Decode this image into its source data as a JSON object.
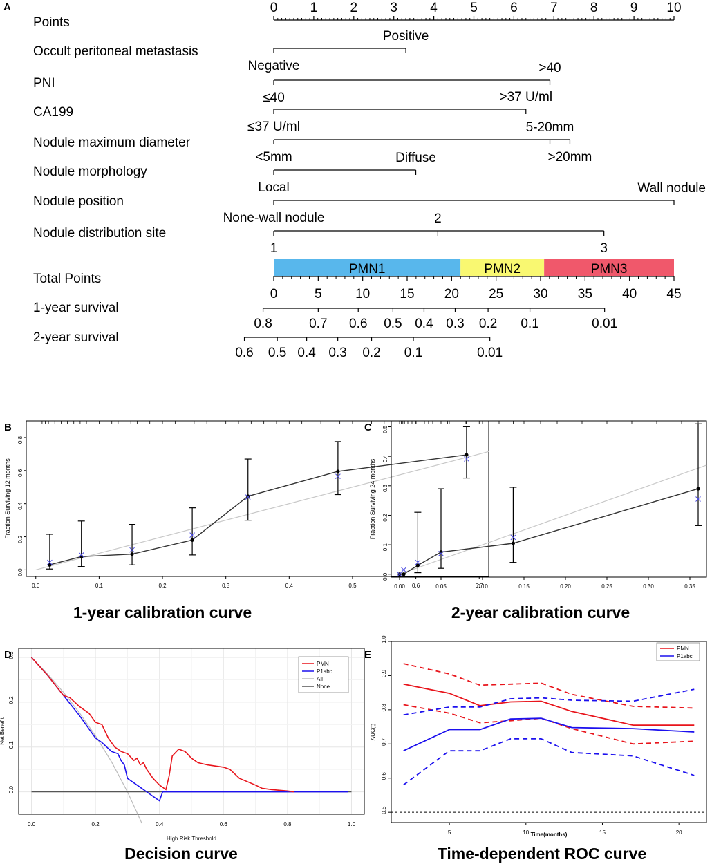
{
  "chart_data": [
    {
      "panel": "A",
      "type": "table",
      "kind": "nomogram",
      "points_axis": {
        "label": "Points",
        "ticks": [
          "0",
          "1",
          "2",
          "3",
          "4",
          "5",
          "6",
          "7",
          "8",
          "9",
          "10"
        ]
      },
      "variables": [
        {
          "key": "occult",
          "name": "Occult peritoneal metastasis",
          "levels": [
            {
              "label": "Negative",
              "points": 0
            },
            {
              "label": "Positive",
              "points": 3.3
            }
          ]
        },
        {
          "key": "pni",
          "name": "PNI",
          "levels": [
            {
              "label": "≤40",
              "points": 0
            },
            {
              "label": ">40",
              "points": 6.9
            }
          ]
        },
        {
          "key": "ca199",
          "name": "CA199",
          "levels": [
            {
              "label": "≤37 U/ml",
              "points": 0
            },
            {
              "label": ">37 U/ml",
              "points": 6.3
            }
          ]
        },
        {
          "key": "diam",
          "name": "Nodule maximum diameter",
          "levels": [
            {
              "label": "<5mm",
              "points": 0
            },
            {
              "label": "5-20mm",
              "points": 6.9
            },
            {
              "label": ">20mm",
              "points": 7.4
            }
          ]
        },
        {
          "key": "morph",
          "name": "Nodule morphology",
          "levels": [
            {
              "label": "Local",
              "points": 0
            },
            {
              "label": "Diffuse",
              "points": 3.55
            }
          ]
        },
        {
          "key": "pos",
          "name": "Nodule position",
          "levels": [
            {
              "label": "None-wall nodule",
              "points": 0
            },
            {
              "label": "Wall nodule",
              "points": 10
            }
          ]
        },
        {
          "key": "dist",
          "name": "Nodule distribution site",
          "levels": [
            {
              "label": "1",
              "points": 0
            },
            {
              "label": "2",
              "points": 4.1
            },
            {
              "label": "3",
              "points": 8.25
            }
          ]
        }
      ],
      "risk_groups": [
        {
          "label": "PMN1",
          "from": 0,
          "to": 21,
          "color": "#58b7ec"
        },
        {
          "label": "PMN2",
          "from": 21,
          "to": 30.4,
          "color": "#f9f871"
        },
        {
          "label": "PMN3",
          "from": 30.4,
          "to": 45,
          "color": "#f0586b"
        }
      ],
      "total_points": {
        "label": "Total Points",
        "min": 0,
        "max": 45,
        "ticks": [
          "0",
          "5",
          "10",
          "15",
          "20",
          "25",
          "30",
          "35",
          "40",
          "45"
        ]
      },
      "survival_1y": {
        "label": "1-year survival",
        "ticks": [
          {
            "label": "0.8",
            "total": -1.2
          },
          {
            "label": "0.7",
            "total": 5.0
          },
          {
            "label": "0.6",
            "total": 9.5
          },
          {
            "label": "0.5",
            "total": 13.4
          },
          {
            "label": "0.4",
            "total": 16.9
          },
          {
            "label": "0.3",
            "total": 20.4
          },
          {
            "label": "0.2",
            "total": 24.1
          },
          {
            "label": "0.1",
            "total": 28.8
          },
          {
            "label": "0.01",
            "total": 37.2
          }
        ]
      },
      "survival_2y": {
        "label": "2-year survival",
        "ticks": [
          {
            "label": "0.6",
            "total": -3.3
          },
          {
            "label": "0.5",
            "total": 0.4
          },
          {
            "label": "0.4",
            "total": 3.7
          },
          {
            "label": "0.3",
            "total": 7.2
          },
          {
            "label": "0.2",
            "total": 11.0
          },
          {
            "label": "0.1",
            "total": 15.7
          },
          {
            "label": "0.01",
            "total": 24.3
          }
        ]
      }
    },
    {
      "panel": "B",
      "type": "scatter",
      "title": "1-year calibration curve",
      "xlabel": "",
      "ylabel": "Fraction Surviving 12 months",
      "xlim": [
        -0.015,
        0.715
      ],
      "ylim": [
        -0.04,
        0.9
      ],
      "xticks": [
        "0.0",
        "0.1",
        "0.2",
        "0.3",
        "0.4",
        "0.5",
        "0.6",
        "0.7"
      ],
      "yticks": [
        "0.0",
        "0.2",
        "0.4",
        "0.6",
        "0.8"
      ],
      "x": [
        0.022,
        0.072,
        0.152,
        0.247,
        0.335,
        0.477,
        0.68
      ],
      "observed": [
        0.03,
        0.08,
        0.095,
        0.18,
        0.445,
        0.595,
        0.695
      ],
      "lower": [
        0.005,
        0.02,
        0.03,
        0.09,
        0.3,
        0.455,
        0.555
      ],
      "upper": [
        0.215,
        0.295,
        0.275,
        0.375,
        0.67,
        0.775,
        0.865
      ],
      "bias_corrected": [
        0.045,
        0.09,
        0.12,
        0.21,
        0.44,
        0.565,
        0.67
      ],
      "ideal_line": [
        [
          0,
          0
        ],
        [
          0.715,
          0.715
        ]
      ]
    },
    {
      "panel": "C",
      "type": "scatter",
      "title": "2-year calibration curve",
      "xlabel": "",
      "ylabel": "Fraction Surviving 24 months",
      "xlim": [
        -0.01,
        0.37
      ],
      "ylim": [
        -0.01,
        0.52
      ],
      "xticks": [
        "0.00",
        "0.05",
        "0.10",
        "0.15",
        "0.20",
        "0.25",
        "0.30",
        "0.35"
      ],
      "yticks": [
        "0.0",
        "0.1",
        "0.2",
        "0.3",
        "0.4",
        "0.5"
      ],
      "x": [
        0.0,
        0.005,
        0.022,
        0.05,
        0.137,
        0.36
      ],
      "observed": [
        0.0,
        0.0,
        0.03,
        0.075,
        0.105,
        0.29
      ],
      "lower": [
        null,
        null,
        0.005,
        0.02,
        0.04,
        0.165
      ],
      "upper": [
        null,
        null,
        0.21,
        0.29,
        0.295,
        0.51
      ],
      "bias_corrected": [
        0.0,
        0.015,
        0.04,
        0.07,
        0.125,
        0.255
      ],
      "ideal_line": [
        [
          0,
          0
        ],
        [
          0.37,
          0.37
        ]
      ]
    },
    {
      "panel": "D",
      "type": "line",
      "title": "Decision curve",
      "xlabel": "High Risk Threshold",
      "ylabel": "Net Benefit",
      "xlim": [
        -0.04,
        1.04
      ],
      "ylim": [
        -0.05,
        0.32
      ],
      "xticks": [
        "0.0",
        "0.2",
        "0.4",
        "0.6",
        "0.8",
        "1.0"
      ],
      "yticks": [
        "0.0",
        "0.1",
        "0.2",
        "0.3"
      ],
      "legend": {
        "position": "top-right",
        "entries": [
          "PMN",
          "P1abc",
          "All",
          "None"
        ]
      },
      "series": [
        {
          "name": "PMN",
          "color": "#e8141b",
          "x": [
            0,
            0.05,
            0.1,
            0.12,
            0.15,
            0.18,
            0.2,
            0.22,
            0.24,
            0.26,
            0.28,
            0.3,
            0.32,
            0.33,
            0.34,
            0.35,
            0.36,
            0.38,
            0.4,
            0.42,
            0.43,
            0.44,
            0.46,
            0.48,
            0.5,
            0.52,
            0.55,
            0.6,
            0.62,
            0.65,
            0.7,
            0.72,
            0.75,
            0.8,
            0.82
          ],
          "y": [
            0.3,
            0.26,
            0.215,
            0.21,
            0.19,
            0.175,
            0.155,
            0.15,
            0.12,
            0.1,
            0.09,
            0.085,
            0.07,
            0.075,
            0.06,
            0.065,
            0.05,
            0.03,
            0.015,
            0.005,
            0.035,
            0.08,
            0.095,
            0.09,
            0.075,
            0.065,
            0.06,
            0.055,
            0.05,
            0.03,
            0.015,
            0.008,
            0.005,
            0.002,
            0
          ]
        },
        {
          "name": "P1abc",
          "color": "#1c10ee",
          "x": [
            0,
            0.05,
            0.1,
            0.15,
            0.2,
            0.22,
            0.25,
            0.27,
            0.28,
            0.29,
            0.3,
            0.33,
            0.36,
            0.38,
            0.4,
            0.41,
            0.5,
            0.6,
            0.7,
            0.8,
            0.9,
            0.99
          ],
          "y": [
            0.3,
            0.26,
            0.215,
            0.17,
            0.12,
            0.11,
            0.09,
            0.085,
            0.07,
            0.06,
            0.03,
            0.015,
            0.0,
            -0.01,
            -0.02,
            0,
            0,
            0,
            0,
            0,
            0,
            0
          ]
        },
        {
          "name": "All",
          "color": "#bbbbbb",
          "x": [
            0,
            0.05,
            0.1,
            0.15,
            0.2,
            0.25,
            0.3,
            0.345
          ],
          "y": [
            0.3,
            0.263,
            0.222,
            0.176,
            0.125,
            0.067,
            0.0,
            -0.07
          ]
        },
        {
          "name": "None",
          "color": "#555555",
          "x": [
            0,
            1
          ],
          "y": [
            0,
            0
          ]
        }
      ]
    },
    {
      "panel": "E",
      "type": "line",
      "title": "Time-dependent ROC curve",
      "xlabel": "Time(months)",
      "ylabel": "AUC(t)",
      "xlim": [
        1.2,
        21.8
      ],
      "ylim": [
        0.47,
        1.0
      ],
      "xticks": [
        "5",
        "10",
        "15",
        "20"
      ],
      "yticks": [
        "0.5",
        "0.6",
        "0.7",
        "0.8",
        "0.9",
        "1.0"
      ],
      "reference_line": 0.5,
      "legend": {
        "position": "top-right",
        "entries": [
          "PMN",
          "P1abc"
        ]
      },
      "series": [
        {
          "name": "PMN",
          "color": "#e8141b",
          "x": [
            2,
            5,
            7,
            9,
            11,
            13,
            17,
            21
          ],
          "y": [
            0.875,
            0.848,
            0.812,
            0.823,
            0.825,
            0.795,
            0.755,
            0.755
          ]
        },
        {
          "name": "PMN lower",
          "color": "#e8141b",
          "dashed": true,
          "x": [
            2,
            5,
            7,
            9,
            11,
            13,
            17,
            21
          ],
          "y": [
            0.815,
            0.79,
            0.762,
            0.768,
            0.775,
            0.745,
            0.7,
            0.708
          ]
        },
        {
          "name": "PMN upper",
          "color": "#e8141b",
          "dashed": true,
          "x": [
            2,
            5,
            7,
            9,
            11,
            13,
            17,
            21
          ],
          "y": [
            0.935,
            0.905,
            0.872,
            0.875,
            0.878,
            0.845,
            0.81,
            0.805
          ]
        },
        {
          "name": "P1abc",
          "color": "#1c10ee",
          "x": [
            2,
            5,
            7,
            9,
            11,
            13,
            17,
            21
          ],
          "y": [
            0.68,
            0.742,
            0.742,
            0.773,
            0.775,
            0.748,
            0.745,
            0.735
          ]
        },
        {
          "name": "P1abc lower",
          "color": "#1c10ee",
          "dashed": true,
          "x": [
            2,
            5,
            7,
            9,
            11,
            13,
            17,
            21
          ],
          "y": [
            0.58,
            0.68,
            0.68,
            0.715,
            0.715,
            0.675,
            0.665,
            0.608
          ]
        },
        {
          "name": "P1abc upper",
          "color": "#1c10ee",
          "dashed": true,
          "x": [
            2,
            5,
            7,
            9,
            11,
            13,
            17,
            21
          ],
          "y": [
            0.785,
            0.808,
            0.808,
            0.832,
            0.835,
            0.828,
            0.825,
            0.86
          ]
        }
      ]
    }
  ],
  "panel_labels": {
    "a": "A",
    "b": "B",
    "c": "C",
    "d": "D",
    "e": "E"
  }
}
